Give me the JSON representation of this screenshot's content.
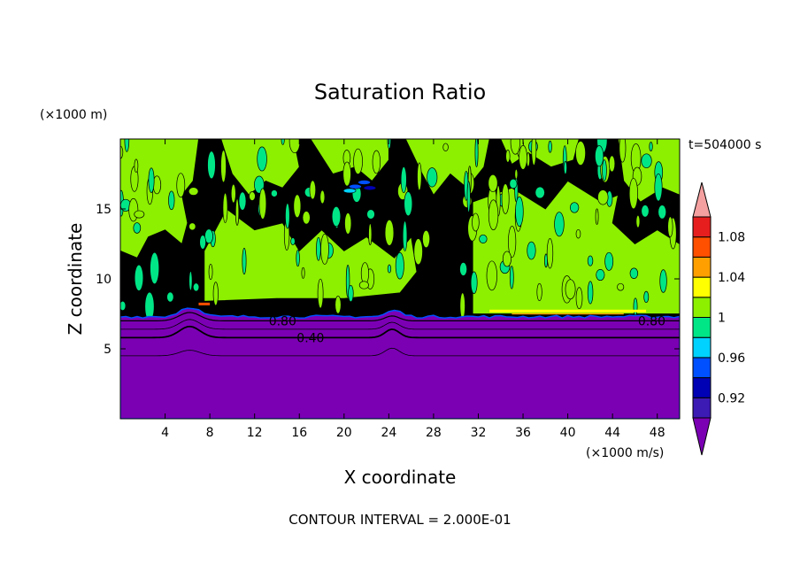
{
  "chart_data": {
    "type": "heatmap",
    "title": "Saturation Ratio",
    "xlabel": "X coordinate",
    "ylabel": "Z coordinate",
    "x_unit": "(×1000 m/s)",
    "y_unit": "(×1000 m)",
    "time_label": "t=504000 s",
    "footer": "CONTOUR INTERVAL = 2.000E-01",
    "xlim": [
      0,
      50
    ],
    "ylim": [
      0,
      20
    ],
    "x_ticks": [
      4,
      8,
      12,
      16,
      20,
      24,
      28,
      32,
      36,
      40,
      44,
      48
    ],
    "y_ticks": [
      5,
      10,
      15
    ],
    "contour_labels": [
      {
        "text": "0.80",
        "x": 14.5,
        "y": 7.0
      },
      {
        "text": "0.40",
        "x": 17.0,
        "y": 5.8
      },
      {
        "text": "0.80",
        "x": 47.5,
        "y": 7.0
      }
    ],
    "colorbar": {
      "levels": [
        {
          "from": null,
          "to": 0.9,
          "color": "#7b00b4"
        },
        {
          "from": 0.9,
          "to": 0.92,
          "color": "#3c1ab4"
        },
        {
          "from": 0.92,
          "to": 0.94,
          "color": "#0000b4"
        },
        {
          "from": 0.94,
          "to": 0.96,
          "color": "#0050ff"
        },
        {
          "from": 0.96,
          "to": 0.98,
          "color": "#00d2ff"
        },
        {
          "from": 0.98,
          "to": 1.0,
          "color": "#00e687"
        },
        {
          "from": 1.0,
          "to": 1.02,
          "color": "#8cf000"
        },
        {
          "from": 1.02,
          "to": 1.04,
          "color": "#ffff00"
        },
        {
          "from": 1.04,
          "to": 1.06,
          "color": "#ffa000"
        },
        {
          "from": 1.06,
          "to": 1.08,
          "color": "#ff5000"
        },
        {
          "from": 1.08,
          "to": 1.1,
          "color": "#e61e1e"
        },
        {
          "from": 1.1,
          "to": null,
          "color": "#f5a0a0"
        }
      ],
      "tick_labels": [
        "0.92",
        "0.96",
        "1",
        "1.04",
        "1.08"
      ],
      "tick_values": [
        0.92,
        0.96,
        1.0,
        1.04,
        1.08
      ]
    },
    "regions": {
      "purple_top_z": 7.3,
      "green_mid_z": 10.0,
      "green_high_z": 15.0
    }
  }
}
